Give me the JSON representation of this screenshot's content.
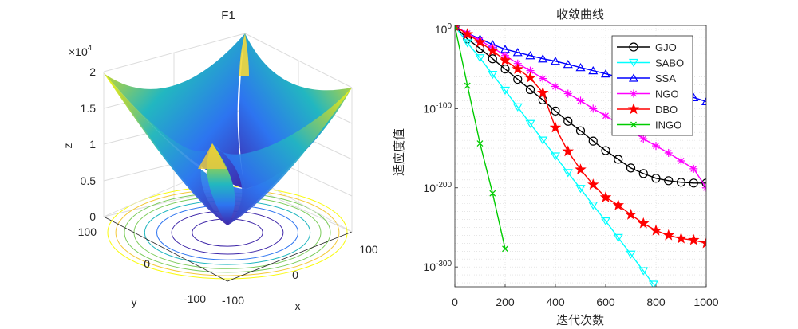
{
  "chart_data": [
    {
      "type": "surface",
      "title": "F1",
      "xlabel": "x",
      "ylabel": "y",
      "zlabel": "z",
      "x_ticks": [
        "-100",
        "0",
        "100"
      ],
      "y_ticks": [
        "-100",
        "0",
        "100"
      ],
      "z_ticks": [
        "0",
        "0.5",
        "1",
        "1.5",
        "2"
      ],
      "z_exponent_label": "×10",
      "z_exponent": "4",
      "xlim": [
        -100,
        100
      ],
      "ylim": [
        -100,
        100
      ],
      "zlim": [
        0,
        20000
      ],
      "contour_levels": [
        1000,
        2500,
        4000,
        5500,
        7000,
        8500,
        10000,
        11500
      ],
      "colormap": [
        "#3e26a8",
        "#2d74f0",
        "#22b7c0",
        "#7ccc5b",
        "#f3c93a",
        "#f9fb0e"
      ]
    },
    {
      "type": "line",
      "title": "收敛曲线",
      "xlabel": "迭代次数",
      "ylabel": "适应度值",
      "yscale": "log",
      "xlim": [
        0,
        1000
      ],
      "ylim_exp": [
        -325,
        5
      ],
      "x_ticks": [
        "0",
        "200",
        "400",
        "600",
        "800",
        "1000"
      ],
      "y_ticks": [
        {
          "base": "10",
          "exp": "0",
          "value_exp": 0
        },
        {
          "base": "10",
          "exp": "-100",
          "value_exp": -100
        },
        {
          "base": "10",
          "exp": "-200",
          "value_exp": -200
        },
        {
          "base": "10",
          "exp": "-300",
          "value_exp": -300
        }
      ],
      "grid": true,
      "legend": "top-right",
      "series": [
        {
          "name": "GJO",
          "color": "#000000",
          "marker": "circle",
          "x": [
            0,
            50,
            100,
            150,
            200,
            250,
            300,
            350,
            400,
            450,
            500,
            550,
            600,
            650,
            700,
            750,
            800,
            850,
            900,
            950,
            1000
          ],
          "y_exp": [
            4,
            -12,
            -24,
            -37,
            -50,
            -63,
            -76,
            -89,
            -103,
            -116,
            -128,
            -141,
            -153,
            -164,
            -175,
            -182,
            -188,
            -191,
            -193,
            -194,
            -194
          ]
        },
        {
          "name": "SABO",
          "color": "#00ffff",
          "marker": "triangle-down",
          "x": [
            0,
            50,
            100,
            150,
            200,
            250,
            300,
            350,
            400,
            450,
            500,
            550,
            600,
            650,
            700,
            750,
            790
          ],
          "y_exp": [
            4,
            -17,
            -36,
            -57,
            -77,
            -98,
            -119,
            -140,
            -160,
            -181,
            -201,
            -222,
            -242,
            -263,
            -284,
            -305,
            -322
          ]
        },
        {
          "name": "SSA",
          "color": "#0000ff",
          "marker": "triangle-up",
          "x": [
            0,
            50,
            100,
            150,
            200,
            250,
            300,
            350,
            400,
            450,
            500,
            550,
            600,
            650,
            700,
            750,
            800,
            850,
            900,
            950,
            1000
          ],
          "y_exp": [
            4,
            -5,
            -12,
            -19,
            -25,
            -29,
            -33,
            -37,
            -40,
            -44,
            -48,
            -52,
            -56,
            -60,
            -64,
            -68,
            -72,
            -77,
            -81,
            -86,
            -91
          ]
        },
        {
          "name": "NGO",
          "color": "#ff00ff",
          "marker": "asterisk",
          "x": [
            0,
            50,
            100,
            150,
            200,
            250,
            300,
            350,
            400,
            450,
            500,
            550,
            600,
            650,
            700,
            750,
            800,
            850,
            900,
            950,
            1000
          ],
          "y_exp": [
            4,
            -5,
            -14,
            -23,
            -33,
            -43,
            -52,
            -62,
            -72,
            -81,
            -90,
            -100,
            -109,
            -119,
            -128,
            -138,
            -147,
            -156,
            -166,
            -176,
            -200
          ]
        },
        {
          "name": "DBO",
          "color": "#ff0000",
          "marker": "pentagram",
          "x": [
            0,
            50,
            100,
            150,
            200,
            250,
            300,
            350,
            400,
            450,
            500,
            550,
            600,
            650,
            700,
            750,
            800,
            850,
            900,
            950,
            1000
          ],
          "y_exp": [
            4,
            -6,
            -16,
            -27,
            -39,
            -50,
            -61,
            -80,
            -124,
            -154,
            -177,
            -196,
            -212,
            -222,
            -234,
            -245,
            -254,
            -260,
            -264,
            -266,
            -270
          ]
        },
        {
          "name": "INGO",
          "color": "#00cc00",
          "marker": "x",
          "x": [
            0,
            50,
            100,
            150,
            200
          ],
          "y_exp": [
            4,
            -71,
            -144,
            -207,
            -277
          ]
        }
      ]
    }
  ]
}
